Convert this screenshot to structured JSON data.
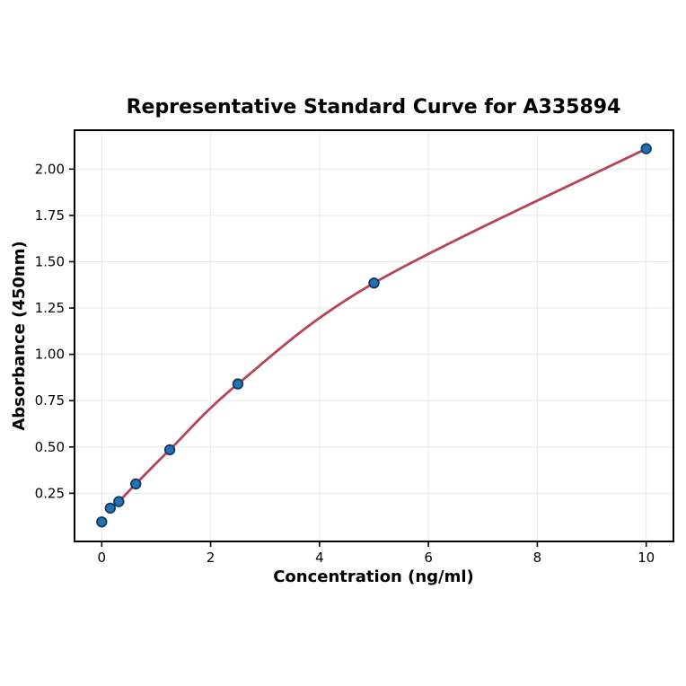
{
  "chart_data": {
    "type": "scatter",
    "title": "Representative Standard Curve for A335894",
    "xlabel": "Concentration (ng/ml)",
    "ylabel": "Absorbance (450nm)",
    "xlim": [
      -0.5,
      10.5
    ],
    "ylim": [
      -0.01,
      2.21
    ],
    "grid": true,
    "legend": "none",
    "x_ticks": [
      0,
      2,
      4,
      6,
      8,
      10
    ],
    "x_tick_labels": [
      "0",
      "2",
      "4",
      "6",
      "8",
      "10"
    ],
    "y_ticks": [
      0.25,
      0.5,
      0.75,
      1.0,
      1.25,
      1.5,
      1.75,
      2.0
    ],
    "y_tick_labels": [
      "0.25",
      "0.50",
      "0.75",
      "1.00",
      "1.25",
      "1.50",
      "1.75",
      "2.00"
    ],
    "points": [
      [
        0,
        0.095
      ],
      [
        0.156,
        0.17
      ],
      [
        0.3125,
        0.205
      ],
      [
        0.625,
        0.3
      ],
      [
        1.25,
        0.485
      ],
      [
        2.5,
        0.84
      ],
      [
        5,
        1.385
      ],
      [
        10,
        2.11
      ]
    ],
    "curve_points": [
      [
        0.156,
        0.17
      ],
      [
        0.3125,
        0.205
      ],
      [
        0.625,
        0.3
      ],
      [
        1.25,
        0.485
      ],
      [
        2.5,
        0.84
      ],
      [
        5,
        1.385
      ],
      [
        10,
        2.11
      ]
    ],
    "colors": {
      "background": "#ffffff",
      "curve": "#b64459",
      "point_fill": "#2272b4",
      "point_edge": "#163a5f",
      "grid": "#e9e9e9",
      "spine": "#000000",
      "text": "#000000"
    }
  }
}
